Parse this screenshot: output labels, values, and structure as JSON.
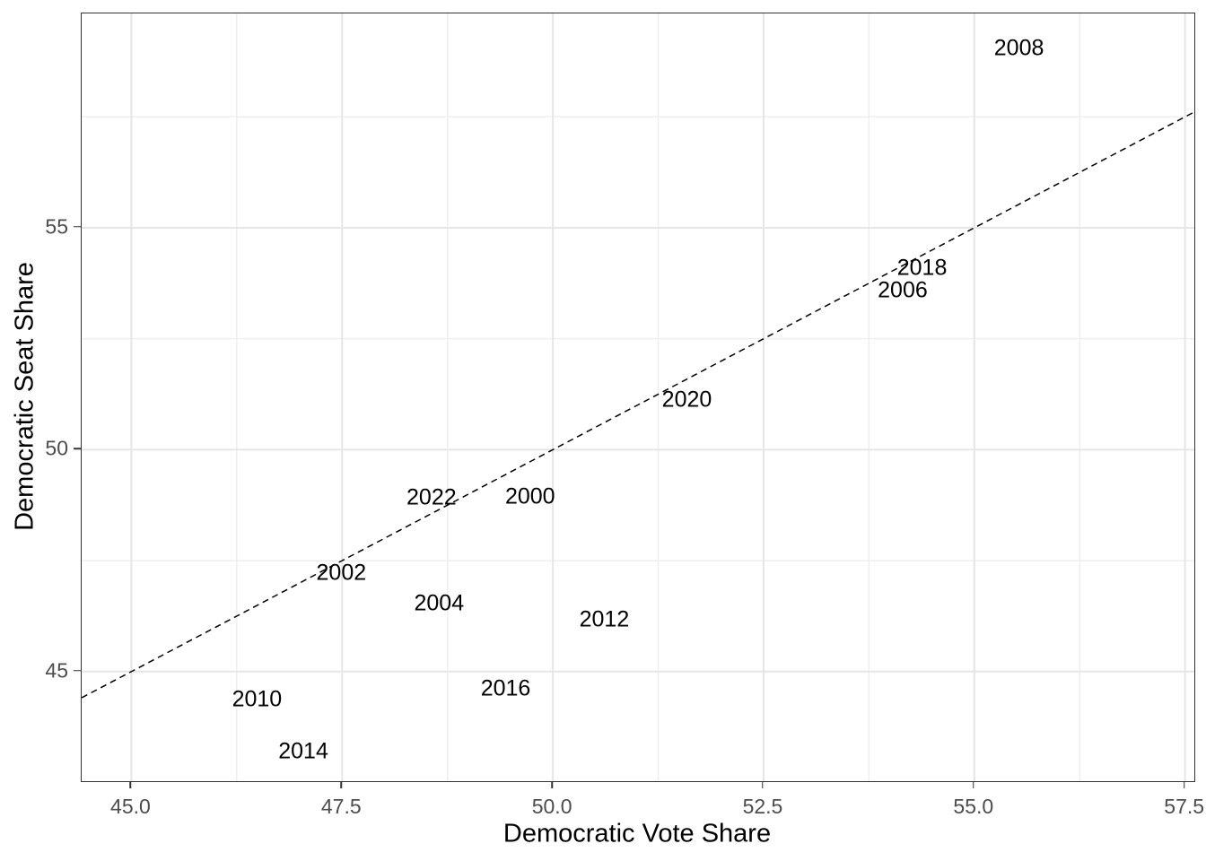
{
  "chart_data": {
    "type": "scatter",
    "mark": "text-labels",
    "title": "",
    "xlabel": "Democratic Vote Share",
    "ylabel": "Democratic Seat Share",
    "xlim": [
      44.41,
      57.61
    ],
    "ylim": [
      42.53,
      59.83
    ],
    "grid": true,
    "legend": "none",
    "x_ticks": [
      45.0,
      47.5,
      50.0,
      52.5,
      55.0,
      57.5
    ],
    "x_tick_labels": [
      "45.0",
      "47.5",
      "50.0",
      "52.5",
      "55.0",
      "57.5"
    ],
    "x_minor_ticks": [
      46.25,
      48.75,
      51.25,
      53.75,
      56.25
    ],
    "y_ticks": [
      45,
      50,
      55
    ],
    "y_tick_labels": [
      "45",
      "50",
      "55"
    ],
    "y_minor_ticks": [
      47.5,
      52.5,
      57.5
    ],
    "points": [
      {
        "label": "2000",
        "x": 49.73,
        "y": 48.94
      },
      {
        "label": "2002",
        "x": 47.49,
        "y": 47.22
      },
      {
        "label": "2004",
        "x": 48.65,
        "y": 46.54
      },
      {
        "label": "2006",
        "x": 54.15,
        "y": 53.59
      },
      {
        "label": "2008",
        "x": 55.53,
        "y": 59.04
      },
      {
        "label": "2010",
        "x": 46.49,
        "y": 44.37
      },
      {
        "label": "2012",
        "x": 50.61,
        "y": 46.17
      },
      {
        "label": "2014",
        "x": 47.04,
        "y": 43.2
      },
      {
        "label": "2016",
        "x": 49.44,
        "y": 44.62
      },
      {
        "label": "2018",
        "x": 54.38,
        "y": 54.09
      },
      {
        "label": "2020",
        "x": 51.59,
        "y": 51.12
      },
      {
        "label": "2022",
        "x": 48.56,
        "y": 48.92
      }
    ],
    "reference_line": {
      "equation": "y = x",
      "slope": 1,
      "intercept": 0,
      "style": "dashed",
      "color": "#000000"
    },
    "colors": {
      "panel_background": "#ffffff",
      "panel_border": "#333333",
      "grid_major": "#e6e6e6",
      "grid_minor": "#efefef",
      "tick_mark": "#333333",
      "tick_label": "#4d4d4d",
      "point_label": "#000000"
    }
  }
}
